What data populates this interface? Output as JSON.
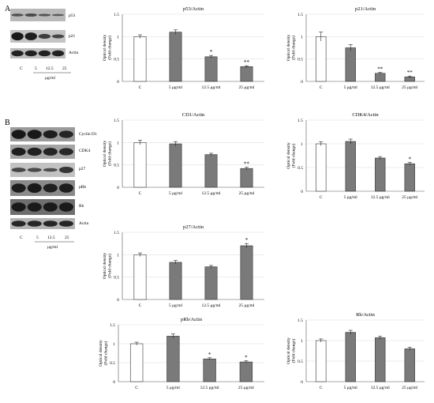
{
  "panel_letters": [
    "A",
    "B"
  ],
  "blot_A": {
    "bands": [
      "p53",
      "p21",
      "Actin"
    ],
    "lanes": [
      "C",
      "5",
      "12.5",
      "25"
    ],
    "unit": "μg/ml"
  },
  "blot_B": {
    "bands": [
      "Cyclin D1",
      "CDK4",
      "p27",
      "pRb",
      "Rb",
      "Actin"
    ],
    "lanes": [
      "C",
      "5",
      "12.5",
      "25"
    ],
    "unit": "μg/ml"
  },
  "colors": {
    "control_bar": "#ffffff",
    "treated_bar": "#7a7a7a",
    "axis": "#555555",
    "gridline": "#d9d9d9"
  },
  "chart_data": [
    {
      "type": "bar",
      "title": "p53/Actin",
      "ylabel": "Optical density (Fold change)",
      "categories": [
        "C",
        "5 μg/ml",
        "12.5 μg/ml",
        "25 μg/ml"
      ],
      "values": [
        1.0,
        1.1,
        0.55,
        0.33
      ],
      "errors": [
        0.04,
        0.05,
        0.03,
        0.02
      ],
      "significance": [
        "",
        "",
        "*",
        "**"
      ],
      "ylim": [
        0,
        1.5
      ],
      "yticks": [
        "0",
        "0.5",
        "1",
        "1.5"
      ],
      "grid": true
    },
    {
      "type": "bar",
      "title": "p21/Actin",
      "ylabel": "Optical density (Fold change)",
      "categories": [
        "C",
        "5 μg/ml",
        "12.5 μg/ml",
        "25 μg/ml"
      ],
      "values": [
        1.0,
        0.75,
        0.18,
        0.1
      ],
      "errors": [
        0.1,
        0.07,
        0.02,
        0.02
      ],
      "significance": [
        "",
        "",
        "**",
        "**"
      ],
      "ylim": [
        0,
        1.5
      ],
      "yticks": [
        "0",
        "0.5",
        "1",
        "1.5"
      ],
      "grid": true
    },
    {
      "type": "bar",
      "title": "CD1/Actin",
      "ylabel": "Optical density (Fold change)",
      "categories": [
        "C",
        "5 μg/ml",
        "12.5 μg/ml",
        "25 μg/ml"
      ],
      "values": [
        1.0,
        0.97,
        0.73,
        0.42
      ],
      "errors": [
        0.05,
        0.05,
        0.03,
        0.03
      ],
      "significance": [
        "",
        "",
        "",
        "**"
      ],
      "ylim": [
        0,
        1.5
      ],
      "yticks": [
        "0",
        "0.5",
        "1",
        "1.5"
      ],
      "grid": true
    },
    {
      "type": "bar",
      "title": "CDK4/Actin",
      "ylabel": "Optical density (Fold change)",
      "categories": [
        "C",
        "5 μg/ml",
        "12.5 μg/ml",
        "25 μg/ml"
      ],
      "values": [
        1.0,
        1.05,
        0.7,
        0.58
      ],
      "errors": [
        0.04,
        0.05,
        0.03,
        0.03
      ],
      "significance": [
        "",
        "",
        "",
        "*"
      ],
      "ylim": [
        0,
        1.5
      ],
      "yticks": [
        "0",
        "0.5",
        "1",
        "1.5"
      ],
      "grid": true
    },
    {
      "type": "bar",
      "title": "p27/Actin",
      "ylabel": "Optical density (Fold change)",
      "categories": [
        "C",
        "5 μg/ml",
        "12.5 μg/ml",
        "25 μg/ml"
      ],
      "values": [
        1.0,
        0.83,
        0.73,
        1.2
      ],
      "errors": [
        0.04,
        0.04,
        0.03,
        0.05
      ],
      "significance": [
        "",
        "",
        "",
        "*"
      ],
      "ylim": [
        0,
        1.5
      ],
      "yticks": [
        "0",
        "0.5",
        "1",
        "1.5"
      ],
      "grid": true
    },
    {
      "type": "bar",
      "title": "pRb/Actin",
      "ylabel": "Optical density (Fold change)",
      "categories": [
        "C",
        "5 μg/ml",
        "12.5 μg/ml",
        "25 μg/ml"
      ],
      "values": [
        1.0,
        1.2,
        0.6,
        0.52
      ],
      "errors": [
        0.04,
        0.06,
        0.03,
        0.03
      ],
      "significance": [
        "",
        "",
        "*",
        "*"
      ],
      "ylim": [
        0,
        1.5
      ],
      "yticks": [
        "0",
        "0.5",
        "1",
        "1.5"
      ],
      "grid": true
    },
    {
      "type": "bar",
      "title": "Rb/Actin",
      "ylabel": "Optical density (Fold change)",
      "categories": [
        "C",
        "5 μg/ml",
        "12.5 μg/ml",
        "25 μg/ml"
      ],
      "values": [
        1.0,
        1.2,
        1.07,
        0.8
      ],
      "errors": [
        0.04,
        0.05,
        0.04,
        0.04
      ],
      "significance": [
        "",
        "",
        "",
        ""
      ],
      "ylim": [
        0,
        1.5
      ],
      "yticks": [
        "0",
        "0.5",
        "1",
        "1.5"
      ],
      "grid": true
    }
  ]
}
